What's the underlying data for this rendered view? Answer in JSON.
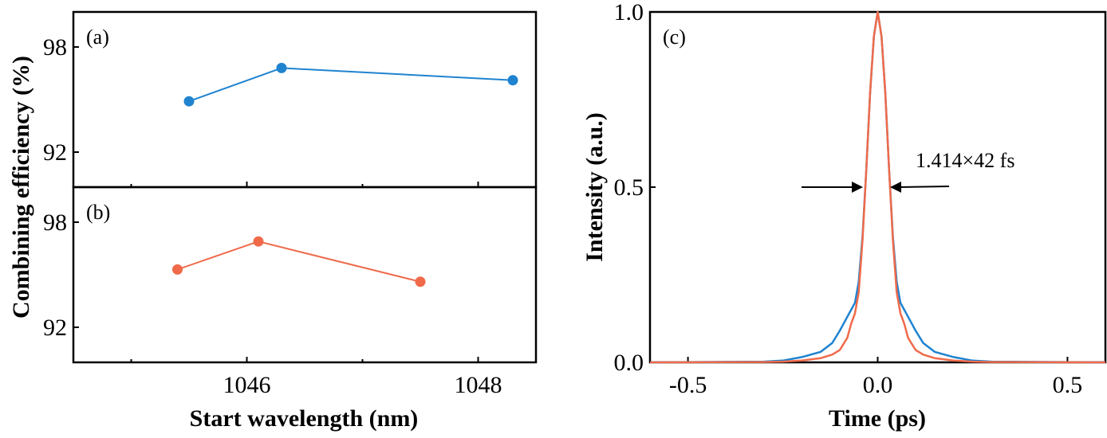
{
  "chart_data": [
    {
      "type": "line",
      "panel_label": "(a)",
      "xlim": [
        1044.5,
        1048.5
      ],
      "ylim": [
        90,
        100
      ],
      "xticks": [
        1046,
        1048
      ],
      "xtick_labels": [
        "1046",
        "1048"
      ],
      "yticks": [
        92,
        98
      ],
      "ytick_labels": [
        "92",
        "98"
      ],
      "color": "#1f83d0",
      "x": [
        1045.5,
        1046.3,
        1048.3
      ],
      "y": [
        94.9,
        96.8,
        96.1
      ]
    },
    {
      "type": "line",
      "panel_label": "(b)",
      "xlim": [
        1044.5,
        1048.5
      ],
      "ylim": [
        90,
        100
      ],
      "xticks": [
        1046,
        1048
      ],
      "xtick_labels": [
        "1046",
        "1048"
      ],
      "yticks": [
        92,
        98
      ],
      "ytick_labels": [
        "92",
        "98"
      ],
      "color": "#f06a4a",
      "x": [
        1045.4,
        1046.1,
        1047.5
      ],
      "y": [
        95.3,
        96.9,
        94.6
      ]
    },
    {
      "type": "line",
      "panel_label": "(c)",
      "xlim": [
        -0.6,
        0.6
      ],
      "ylim": [
        0,
        1.0
      ],
      "xticks": [
        -0.5,
        0.0,
        0.5
      ],
      "xtick_labels": [
        "-0.5",
        "0.0",
        "0.5"
      ],
      "yticks": [
        0,
        0.5,
        1.0
      ],
      "ytick_labels": [
        "0.0",
        "0.5",
        "1.0"
      ],
      "xlabel": "Time (ps)",
      "ylabel": "Intensity (a.u.)",
      "annotation": "1.414×42 fs",
      "series": [
        {
          "color": "#1f83d0",
          "x": [
            -0.6,
            -0.3,
            -0.25,
            -0.2,
            -0.15,
            -0.12,
            -0.1,
            -0.08,
            -0.07,
            -0.06,
            -0.05,
            -0.04,
            -0.03,
            -0.02,
            -0.01,
            0,
            0.01,
            0.02,
            0.03,
            0.04,
            0.05,
            0.06,
            0.07,
            0.08,
            0.1,
            0.12,
            0.15,
            0.2,
            0.25,
            0.3,
            0.6
          ],
          "y": [
            0,
            0.002,
            0.005,
            0.015,
            0.03,
            0.055,
            0.09,
            0.13,
            0.15,
            0.17,
            0.23,
            0.36,
            0.55,
            0.77,
            0.93,
            1.0,
            0.93,
            0.77,
            0.55,
            0.36,
            0.23,
            0.17,
            0.15,
            0.13,
            0.09,
            0.055,
            0.03,
            0.015,
            0.005,
            0.002,
            0
          ]
        },
        {
          "color": "#f06a4a",
          "x": [
            -0.6,
            -0.3,
            -0.25,
            -0.2,
            -0.15,
            -0.12,
            -0.1,
            -0.08,
            -0.07,
            -0.06,
            -0.05,
            -0.04,
            -0.03,
            -0.02,
            -0.01,
            0,
            0.01,
            0.02,
            0.03,
            0.04,
            0.05,
            0.06,
            0.07,
            0.08,
            0.1,
            0.12,
            0.15,
            0.2,
            0.25,
            0.3,
            0.6
          ],
          "y": [
            0,
            0.001,
            0.002,
            0.005,
            0.012,
            0.022,
            0.035,
            0.07,
            0.11,
            0.14,
            0.2,
            0.35,
            0.55,
            0.77,
            0.93,
            1.0,
            0.93,
            0.77,
            0.55,
            0.35,
            0.2,
            0.14,
            0.11,
            0.07,
            0.035,
            0.022,
            0.012,
            0.005,
            0.002,
            0.001,
            0
          ]
        }
      ]
    }
  ],
  "shared": {
    "ylabel": "Combining efficiency (%)",
    "xlabel": "Start wavelength (nm)"
  }
}
